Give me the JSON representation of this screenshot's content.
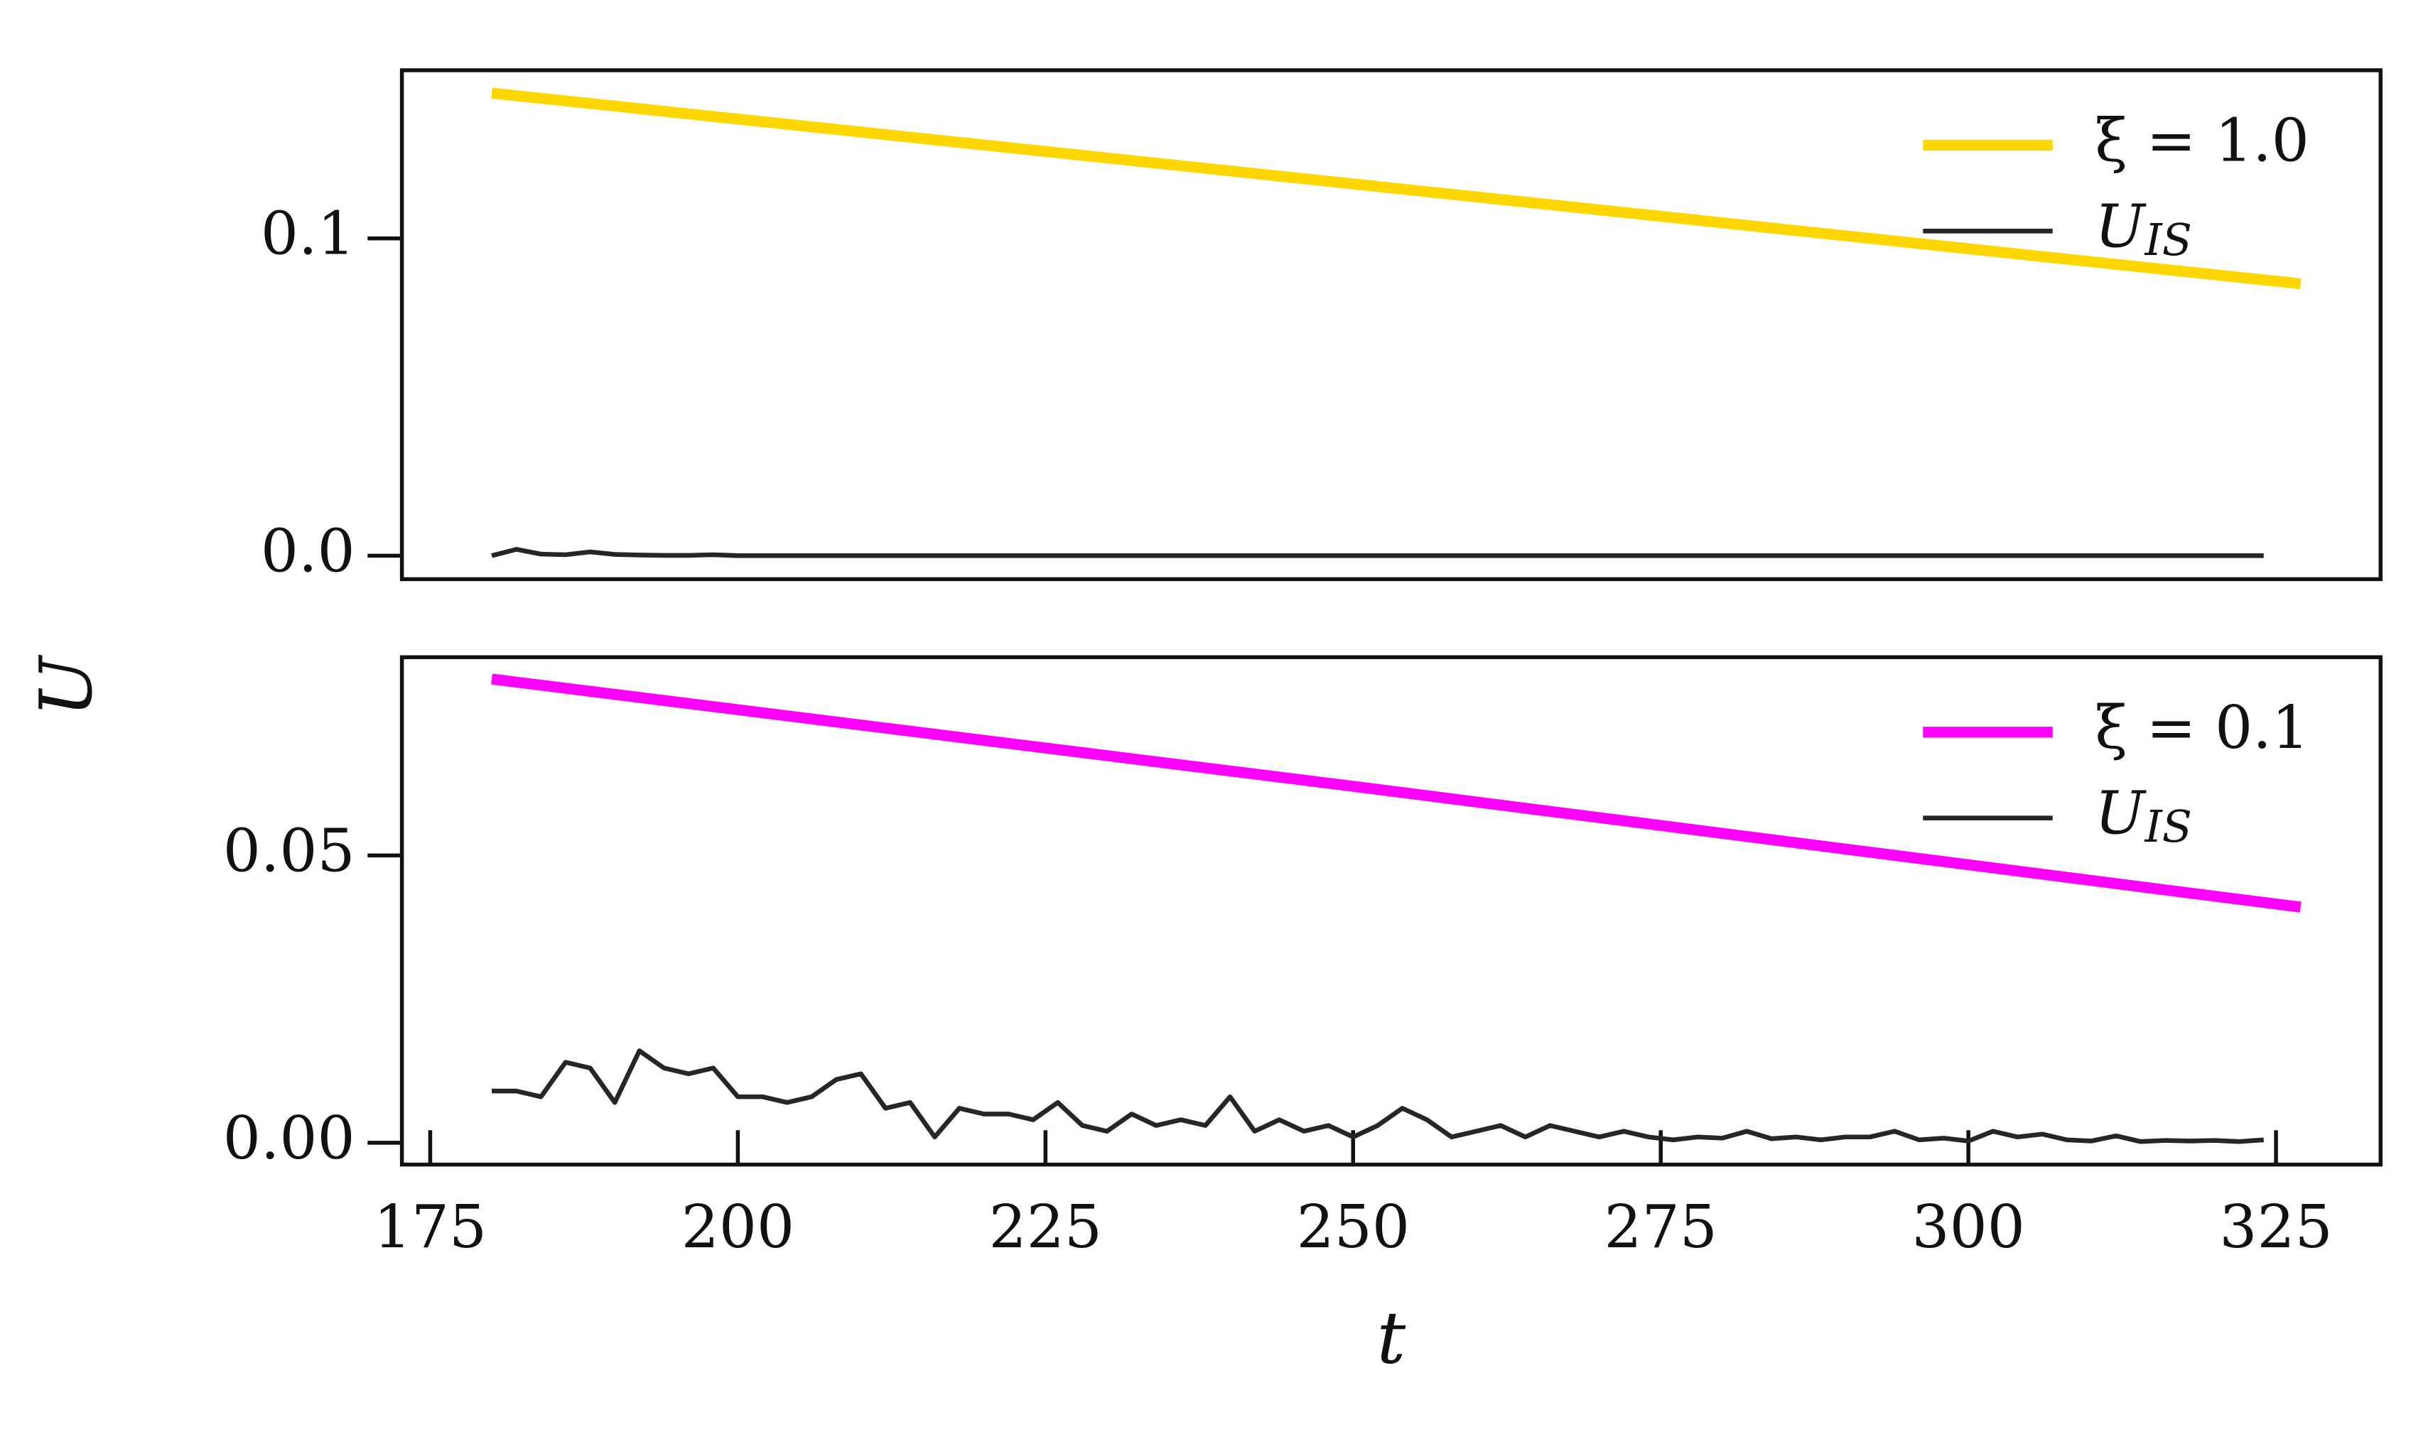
{
  "chart_data": [
    {
      "type": "line",
      "ylabel": "U",
      "legend": "upper right",
      "xlim": [
        172.7,
        333.5
      ],
      "ylim": [
        -0.0074,
        0.153
      ],
      "yticks": [
        {
          "value": 0,
          "label": "0.0"
        },
        {
          "value": 0.1,
          "label": "0.1"
        }
      ],
      "series": [
        {
          "name": "ξ = 1.0",
          "color": "#ffd700",
          "width": 7,
          "x": [
            180,
            327
          ],
          "values": [
            0.1458,
            0.0857
          ]
        },
        {
          "name": "U_IS",
          "color": "#262626",
          "width": 3,
          "x": [
            180,
            182,
            184,
            186,
            188,
            190,
            192,
            194,
            196,
            198,
            200,
            202,
            204,
            206,
            208,
            210,
            212,
            214,
            216,
            218,
            220,
            222,
            224,
            226,
            228,
            230,
            232,
            234,
            236,
            238,
            240,
            242,
            244,
            246,
            248,
            250,
            252,
            254,
            256,
            258,
            260,
            262,
            264,
            266,
            268,
            270,
            272,
            274,
            276,
            278,
            280,
            282,
            284,
            286,
            288,
            290,
            292,
            294,
            296,
            298,
            300,
            302,
            304,
            306,
            308,
            310,
            312,
            314,
            316,
            318,
            320,
            322,
            324
          ],
          "values": [
            0,
            0.002,
            0.0005,
            0.0003,
            0.0012,
            0.0004,
            0.0002,
            0.0001,
            0.0001,
            0.0003,
            0,
            0,
            0,
            0,
            0,
            0,
            0,
            0,
            0,
            0,
            0,
            0,
            0,
            0,
            0,
            0,
            0,
            0,
            0,
            0,
            0,
            0,
            0,
            0,
            0,
            0,
            0,
            0,
            0,
            0,
            0,
            0,
            0,
            0,
            0,
            0,
            0,
            0,
            0,
            0,
            0,
            0,
            0,
            0,
            0,
            0,
            0,
            0,
            0,
            0,
            0,
            0,
            0,
            0,
            0,
            0,
            0,
            0,
            0,
            0,
            0,
            0,
            0
          ]
        }
      ]
    },
    {
      "type": "line",
      "xlabel": "t",
      "legend": "upper right",
      "xlim": [
        172.7,
        333.5
      ],
      "ylim": [
        -0.0038,
        0.0845
      ],
      "xticks": [
        175,
        200,
        225,
        250,
        275,
        300,
        325
      ],
      "yticks": [
        {
          "value": 0,
          "label": "0.00"
        },
        {
          "value": 0.05,
          "label": "0.05"
        }
      ],
      "series": [
        {
          "name": "ξ = 0.1",
          "color": "#ff00ff",
          "width": 7,
          "x": [
            180,
            252,
            327
          ],
          "values": [
            0.0807,
            0.0615,
            0.041
          ]
        },
        {
          "name": "U_IS",
          "color": "#262626",
          "width": 3,
          "x": [
            180,
            182,
            184,
            186,
            188,
            190,
            192,
            194,
            196,
            198,
            200,
            202,
            204,
            206,
            208,
            210,
            212,
            214,
            216,
            218,
            220,
            222,
            224,
            226,
            228,
            230,
            232,
            234,
            236,
            238,
            240,
            242,
            244,
            246,
            248,
            250,
            252,
            254,
            256,
            258,
            260,
            262,
            264,
            266,
            268,
            270,
            272,
            274,
            276,
            278,
            280,
            282,
            284,
            286,
            288,
            290,
            292,
            294,
            296,
            298,
            300,
            302,
            304,
            306,
            308,
            310,
            312,
            314,
            316,
            318,
            320,
            322,
            324
          ],
          "values": [
            0.009,
            0.009,
            0.008,
            0.014,
            0.013,
            0.007,
            0.016,
            0.013,
            0.012,
            0.013,
            0.008,
            0.008,
            0.007,
            0.008,
            0.011,
            0.012,
            0.006,
            0.007,
            0.001,
            0.006,
            0.005,
            0.005,
            0.004,
            0.007,
            0.003,
            0.002,
            0.005,
            0.003,
            0.004,
            0.003,
            0.008,
            0.002,
            0.004,
            0.002,
            0.003,
            0.001,
            0.003,
            0.006,
            0.004,
            0.001,
            0.002,
            0.003,
            0.001,
            0.003,
            0.002,
            0.001,
            0.002,
            0.001,
            0.0005,
            0.001,
            0.0008,
            0.002,
            0.0007,
            0.001,
            0.0005,
            0.001,
            0.001,
            0.002,
            0.0005,
            0.0008,
            0.0003,
            0.002,
            0.001,
            0.0015,
            0.0005,
            0.0003,
            0.0012,
            0.0002,
            0.0004,
            0.0003,
            0.0004,
            0.0002,
            0.0005
          ]
        }
      ]
    }
  ]
}
